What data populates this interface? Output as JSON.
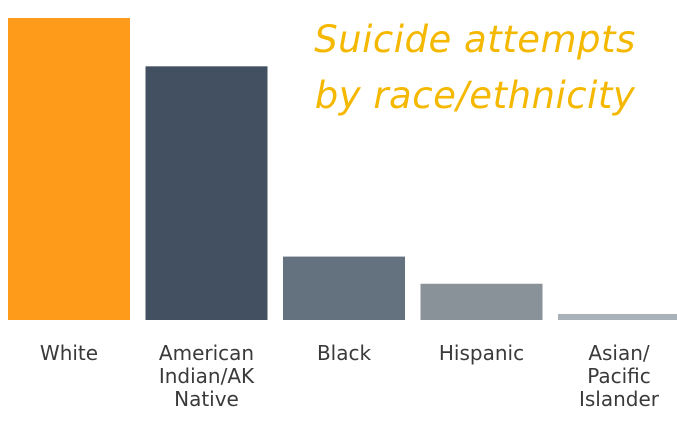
{
  "chart_data": {
    "type": "bar",
    "title": "Suicide attempts by race/ethnicity",
    "categories": [
      "White",
      "American\nIndian/AK\nNative",
      "Black",
      "Hispanic",
      "Asian/\nPacific\nIslander"
    ],
    "values": [
      100,
      84,
      21,
      12,
      2
    ],
    "colors": [
      "#ff9b1a",
      "#425061",
      "#647280",
      "#899199",
      "#aab2b9"
    ],
    "xlabel": "",
    "ylabel": "",
    "ylim": [
      0,
      100
    ],
    "grid": false,
    "legend": "none"
  }
}
